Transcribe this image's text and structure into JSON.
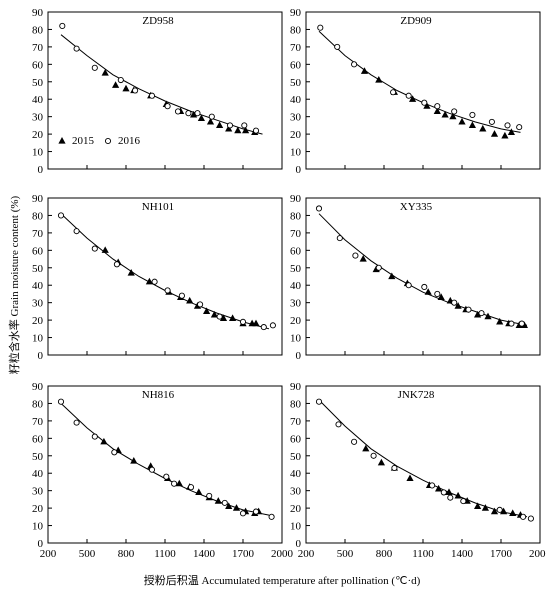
{
  "figure": {
    "ylabel": "籽粒含水率 Grain moisture content (%)",
    "xlabel": "授粉后积温 Accumulated temperature after pollination (℃·d)",
    "legend": {
      "items": [
        "2015",
        "2016"
      ],
      "placement": "bottom-left of first panel"
    }
  },
  "chart_data": [
    {
      "type": "scatter",
      "title": "ZD958",
      "xlim": [
        200,
        2000
      ],
      "ylim": [
        0,
        90
      ],
      "x_ticks": [
        200,
        500,
        800,
        1100,
        1400,
        1700,
        2000
      ],
      "y_ticks": [
        0,
        10,
        20,
        30,
        40,
        50,
        60,
        70,
        80,
        90
      ],
      "series": [
        {
          "name": "2015",
          "marker": "filled-triangle",
          "points": [
            [
              640,
              55
            ],
            [
              720,
              48
            ],
            [
              800,
              46
            ],
            [
              860,
              45
            ],
            [
              990,
              42
            ],
            [
              1110,
              37
            ],
            [
              1220,
              33
            ],
            [
              1320,
              31
            ],
            [
              1380,
              29
            ],
            [
              1450,
              27
            ],
            [
              1520,
              25
            ],
            [
              1590,
              23
            ],
            [
              1660,
              22
            ],
            [
              1720,
              22
            ],
            [
              1790,
              21
            ]
          ]
        },
        {
          "name": "2016",
          "marker": "open-circle",
          "points": [
            [
              310,
              82
            ],
            [
              420,
              69
            ],
            [
              560,
              58
            ],
            [
              760,
              51
            ],
            [
              870,
              45
            ],
            [
              1000,
              42
            ],
            [
              1120,
              36
            ],
            [
              1200,
              33
            ],
            [
              1280,
              32
            ],
            [
              1350,
              32
            ],
            [
              1460,
              30
            ],
            [
              1600,
              25
            ],
            [
              1710,
              25
            ],
            [
              1800,
              22
            ]
          ]
        }
      ],
      "fit_curve": [
        [
          300,
          77
        ],
        [
          500,
          65
        ],
        [
          700,
          54
        ],
        [
          900,
          46
        ],
        [
          1100,
          39
        ],
        [
          1300,
          33
        ],
        [
          1500,
          28
        ],
        [
          1700,
          23
        ],
        [
          1850,
          20
        ]
      ]
    },
    {
      "type": "scatter",
      "title": "ZD909",
      "xlim": [
        200,
        2000
      ],
      "ylim": [
        0,
        90
      ],
      "x_ticks": [
        200,
        500,
        800,
        1100,
        1400,
        1700,
        2000
      ],
      "y_ticks": [
        0,
        10,
        20,
        30,
        40,
        50,
        60,
        70,
        80,
        90
      ],
      "series": [
        {
          "name": "2015",
          "marker": "filled-triangle",
          "points": [
            [
              650,
              56
            ],
            [
              760,
              51
            ],
            [
              880,
              44
            ],
            [
              1020,
              40
            ],
            [
              1130,
              36
            ],
            [
              1210,
              33
            ],
            [
              1270,
              31
            ],
            [
              1330,
              30
            ],
            [
              1400,
              27
            ],
            [
              1480,
              25
            ],
            [
              1560,
              23
            ],
            [
              1650,
              20
            ],
            [
              1730,
              19
            ],
            [
              1780,
              21
            ]
          ]
        },
        {
          "name": "2016",
          "marker": "open-circle",
          "points": [
            [
              310,
              81
            ],
            [
              440,
              70
            ],
            [
              570,
              60
            ],
            [
              870,
              44
            ],
            [
              990,
              42
            ],
            [
              1110,
              38
            ],
            [
              1210,
              36
            ],
            [
              1340,
              33
            ],
            [
              1480,
              31
            ],
            [
              1630,
              27
            ],
            [
              1750,
              25
            ],
            [
              1840,
              24
            ]
          ]
        }
      ],
      "fit_curve": [
        [
          300,
          79
        ],
        [
          500,
          65
        ],
        [
          700,
          54
        ],
        [
          900,
          45
        ],
        [
          1100,
          38
        ],
        [
          1300,
          32
        ],
        [
          1500,
          27
        ],
        [
          1700,
          23
        ],
        [
          1850,
          21
        ]
      ]
    },
    {
      "type": "scatter",
      "title": "NH101",
      "xlim": [
        200,
        2000
      ],
      "ylim": [
        0,
        90
      ],
      "x_ticks": [
        200,
        500,
        800,
        1100,
        1400,
        1700,
        2000
      ],
      "y_ticks": [
        0,
        10,
        20,
        30,
        40,
        50,
        60,
        70,
        80,
        90
      ],
      "series": [
        {
          "name": "2015",
          "marker": "filled-triangle",
          "points": [
            [
              640,
              60
            ],
            [
              740,
              53
            ],
            [
              840,
              47
            ],
            [
              980,
              42
            ],
            [
              1130,
              36
            ],
            [
              1220,
              33
            ],
            [
              1290,
              31
            ],
            [
              1350,
              28
            ],
            [
              1420,
              25
            ],
            [
              1480,
              23
            ],
            [
              1550,
              21
            ],
            [
              1620,
              21
            ],
            [
              1700,
              18
            ],
            [
              1770,
              18
            ],
            [
              1800,
              18
            ]
          ]
        },
        {
          "name": "2016",
          "marker": "open-circle",
          "points": [
            [
              300,
              80
            ],
            [
              420,
              71
            ],
            [
              560,
              61
            ],
            [
              730,
              52
            ],
            [
              1020,
              42
            ],
            [
              1120,
              37
            ],
            [
              1230,
              34
            ],
            [
              1370,
              29
            ],
            [
              1520,
              22
            ],
            [
              1700,
              19
            ],
            [
              1860,
              16
            ],
            [
              1930,
              17
            ]
          ]
        }
      ],
      "fit_curve": [
        [
          300,
          81
        ],
        [
          500,
          67
        ],
        [
          700,
          55
        ],
        [
          900,
          45
        ],
        [
          1100,
          37
        ],
        [
          1300,
          30
        ],
        [
          1500,
          24
        ],
        [
          1700,
          19
        ],
        [
          1900,
          15
        ]
      ]
    },
    {
      "type": "scatter",
      "title": "XY335",
      "xlim": [
        200,
        2000
      ],
      "ylim": [
        0,
        90
      ],
      "x_ticks": [
        200,
        500,
        800,
        1100,
        1400,
        1700,
        2000
      ],
      "y_ticks": [
        0,
        10,
        20,
        30,
        40,
        50,
        60,
        70,
        80,
        90
      ],
      "series": [
        {
          "name": "2015",
          "marker": "filled-triangle",
          "points": [
            [
              640,
              55
            ],
            [
              740,
              49
            ],
            [
              860,
              45
            ],
            [
              980,
              41
            ],
            [
              1140,
              36
            ],
            [
              1240,
              33
            ],
            [
              1310,
              31
            ],
            [
              1370,
              28
            ],
            [
              1430,
              26
            ],
            [
              1520,
              23
            ],
            [
              1600,
              22
            ],
            [
              1690,
              19
            ],
            [
              1760,
              18
            ],
            [
              1840,
              17
            ],
            [
              1880,
              17
            ]
          ]
        },
        {
          "name": "2016",
          "marker": "open-circle",
          "points": [
            [
              300,
              84
            ],
            [
              460,
              67
            ],
            [
              580,
              57
            ],
            [
              760,
              50
            ],
            [
              990,
              40
            ],
            [
              1110,
              39
            ],
            [
              1210,
              35
            ],
            [
              1340,
              30
            ],
            [
              1450,
              26
            ],
            [
              1550,
              24
            ],
            [
              1780,
              18
            ],
            [
              1860,
              18
            ]
          ]
        }
      ],
      "fit_curve": [
        [
          300,
          81
        ],
        [
          500,
          66
        ],
        [
          700,
          54
        ],
        [
          900,
          44
        ],
        [
          1100,
          36
        ],
        [
          1300,
          30
        ],
        [
          1500,
          25
        ],
        [
          1700,
          20
        ],
        [
          1900,
          17
        ]
      ]
    },
    {
      "type": "scatter",
      "title": "NH816",
      "xlim": [
        200,
        2000
      ],
      "ylim": [
        0,
        90
      ],
      "x_ticks": [
        200,
        500,
        800,
        1100,
        1400,
        1700,
        2000
      ],
      "y_ticks": [
        0,
        10,
        20,
        30,
        40,
        50,
        60,
        70,
        80,
        90
      ],
      "series": [
        {
          "name": "2015",
          "marker": "filled-triangle",
          "points": [
            [
              630,
              58
            ],
            [
              740,
              53
            ],
            [
              860,
              47
            ],
            [
              990,
              44
            ],
            [
              1120,
              37
            ],
            [
              1210,
              34
            ],
            [
              1290,
              32
            ],
            [
              1360,
              29
            ],
            [
              1440,
              26
            ],
            [
              1510,
              24
            ],
            [
              1590,
              21
            ],
            [
              1650,
              20
            ],
            [
              1720,
              18
            ],
            [
              1790,
              17
            ],
            [
              1820,
              18
            ]
          ]
        },
        {
          "name": "2016",
          "marker": "open-circle",
          "points": [
            [
              300,
              81
            ],
            [
              420,
              69
            ],
            [
              560,
              61
            ],
            [
              710,
              52
            ],
            [
              1000,
              42
            ],
            [
              1110,
              38
            ],
            [
              1170,
              34
            ],
            [
              1300,
              32
            ],
            [
              1440,
              27
            ],
            [
              1560,
              23
            ],
            [
              1700,
              17
            ],
            [
              1800,
              18
            ],
            [
              1920,
              15
            ]
          ]
        }
      ],
      "fit_curve": [
        [
          300,
          80
        ],
        [
          500,
          66
        ],
        [
          700,
          54
        ],
        [
          900,
          45
        ],
        [
          1100,
          37
        ],
        [
          1300,
          30
        ],
        [
          1500,
          24
        ],
        [
          1700,
          19
        ],
        [
          1900,
          16
        ]
      ]
    },
    {
      "type": "scatter",
      "title": "JNK728",
      "xlim": [
        200,
        2000
      ],
      "ylim": [
        0,
        90
      ],
      "x_ticks": [
        200,
        500,
        800,
        1100,
        1400,
        1700,
        2000
      ],
      "y_ticks": [
        0,
        10,
        20,
        30,
        40,
        50,
        60,
        70,
        80,
        90
      ],
      "series": [
        {
          "name": "2015",
          "marker": "filled-triangle",
          "points": [
            [
              660,
              54
            ],
            [
              780,
              46
            ],
            [
              880,
              43
            ],
            [
              1000,
              37
            ],
            [
              1150,
              33
            ],
            [
              1220,
              31
            ],
            [
              1300,
              29
            ],
            [
              1370,
              27
            ],
            [
              1440,
              24
            ],
            [
              1520,
              21
            ],
            [
              1580,
              20
            ],
            [
              1650,
              18
            ],
            [
              1720,
              18
            ],
            [
              1790,
              17
            ],
            [
              1850,
              16
            ]
          ]
        },
        {
          "name": "2016",
          "marker": "open-circle",
          "points": [
            [
              300,
              81
            ],
            [
              450,
              68
            ],
            [
              570,
              58
            ],
            [
              720,
              50
            ],
            [
              880,
              43
            ],
            [
              1170,
              33
            ],
            [
              1260,
              29
            ],
            [
              1310,
              26
            ],
            [
              1410,
              24
            ],
            [
              1690,
              19
            ],
            [
              1870,
              15
            ],
            [
              1930,
              14
            ]
          ]
        }
      ],
      "fit_curve": [
        [
          300,
          82
        ],
        [
          500,
          67
        ],
        [
          700,
          54
        ],
        [
          900,
          44
        ],
        [
          1100,
          36
        ],
        [
          1300,
          29
        ],
        [
          1500,
          23
        ],
        [
          1700,
          18
        ],
        [
          1900,
          15
        ]
      ]
    }
  ]
}
